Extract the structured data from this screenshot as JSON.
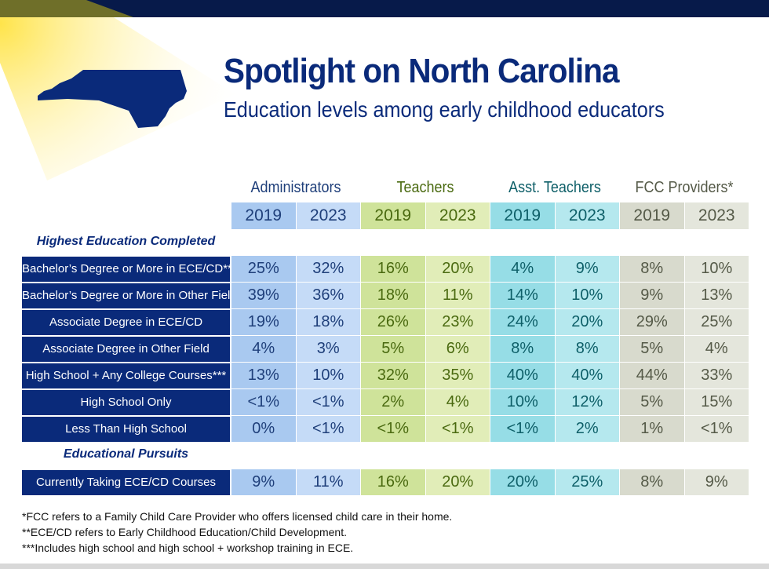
{
  "header": {
    "title": "Spotlight on North Carolina",
    "subtitle": "Education levels among early childhood educators"
  },
  "colors": {
    "navy": "#0a2a7a",
    "admin": [
      "#a9c9f0",
      "#c5dbf7",
      "#1f3f7a"
    ],
    "teachers": [
      "#cfe39a",
      "#e1edb8",
      "#4a6a10"
    ],
    "asst": [
      "#96dde6",
      "#b5e8ee",
      "#0e5f68"
    ],
    "fcc": [
      "#d8dacd",
      "#e4e6dc",
      "#555a48"
    ]
  },
  "groups": [
    "Administrators",
    "Teachers",
    "Asst. Teachers",
    "FCC Providers*"
  ],
  "years": [
    "2019",
    "2023",
    "2019",
    "2023",
    "2019",
    "2023",
    "2019",
    "2023"
  ],
  "sections": [
    "Highest Education Completed",
    "Educational Pursuits"
  ],
  "rows": [
    {
      "label": "Bachelor’s Degree or More in ECE/CD**",
      "values": [
        "25%",
        "32%",
        "16%",
        "20%",
        "4%",
        "9%",
        "8%",
        "10%"
      ]
    },
    {
      "label": "Bachelor’s Degree or More in Other Field",
      "values": [
        "39%",
        "36%",
        "18%",
        "11%",
        "14%",
        "10%",
        "9%",
        "13%"
      ]
    },
    {
      "label": "Associate Degree in ECE/CD",
      "values": [
        "19%",
        "18%",
        "26%",
        "23%",
        "24%",
        "20%",
        "29%",
        "25%"
      ]
    },
    {
      "label": "Associate Degree in Other Field",
      "values": [
        "4%",
        "3%",
        "5%",
        "6%",
        "8%",
        "8%",
        "5%",
        "4%"
      ]
    },
    {
      "label": "High School + Any College Courses***",
      "values": [
        "13%",
        "10%",
        "32%",
        "35%",
        "40%",
        "40%",
        "44%",
        "33%"
      ]
    },
    {
      "label": "High School Only",
      "values": [
        "<1%",
        "<1%",
        "2%",
        "4%",
        "10%",
        "12%",
        "5%",
        "15%"
      ]
    },
    {
      "label": "Less Than High School",
      "values": [
        "0%",
        "<1%",
        "<1%",
        "<1%",
        "<1%",
        "2%",
        "1%",
        "<1%"
      ]
    },
    {
      "label": "Currently Taking ECE/CD Courses",
      "values": [
        "9%",
        "11%",
        "16%",
        "20%",
        "20%",
        "25%",
        "8%",
        "9%"
      ]
    }
  ],
  "notes": [
    "*FCC refers to a Family Child Care Provider who offers licensed child care in their home.",
    "**ECE/CD refers to Early Childhood Education/Child Development.",
    "***Includes high school and high school + workshop training in ECE."
  ]
}
